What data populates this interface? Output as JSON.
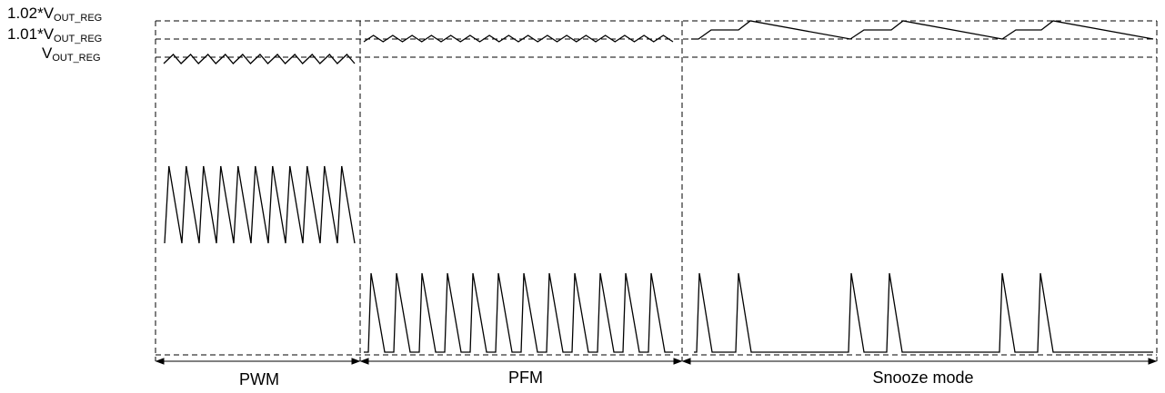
{
  "levels": {
    "top": {
      "prefix": "1.02*V",
      "sub": "OUT_REG"
    },
    "mid": {
      "prefix": "1.01*V",
      "sub": "OUT_REG"
    },
    "base": {
      "prefix": "V",
      "sub": "OUT_REG"
    }
  },
  "modes": {
    "pwm": "PWM",
    "pfm": "PFM",
    "snooze": "Snooze mode"
  }
}
